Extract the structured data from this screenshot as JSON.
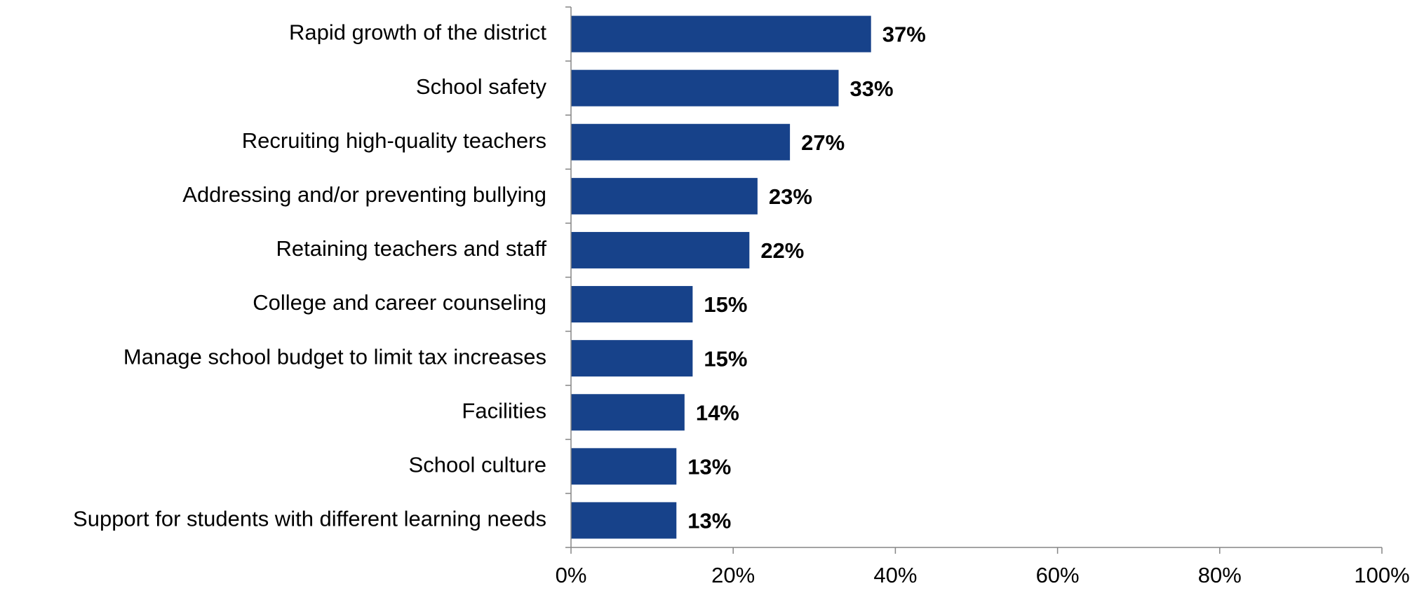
{
  "chart_data": {
    "type": "bar",
    "orientation": "horizontal",
    "categories": [
      "Rapid growth of the district",
      "School safety",
      "Recruiting high-quality teachers",
      "Addressing and/or preventing bullying",
      "Retaining teachers and staff",
      "College and career counseling",
      "Manage school budget to limit tax increases",
      "Facilities",
      "School culture",
      "Support for students with different learning needs"
    ],
    "values": [
      37,
      33,
      27,
      23,
      22,
      15,
      15,
      14,
      13,
      13
    ],
    "value_labels": [
      "37%",
      "33%",
      "27%",
      "23%",
      "22%",
      "15%",
      "15%",
      "14%",
      "13%",
      "13%"
    ],
    "xlim": [
      0,
      100
    ],
    "x_ticks": [
      0,
      20,
      40,
      60,
      80,
      100
    ],
    "x_tick_labels": [
      "0%",
      "20%",
      "40%",
      "60%",
      "80%",
      "100%"
    ],
    "title": "",
    "xlabel": "",
    "ylabel": "",
    "grid": false,
    "legend": "none",
    "bar_color": "#17428A"
  }
}
